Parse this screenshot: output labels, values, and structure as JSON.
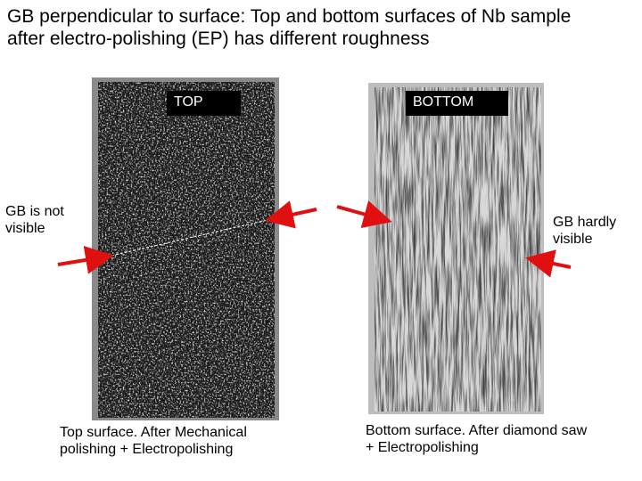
{
  "title": "GB perpendicular to surface: Top and bottom surfaces of Nb sample after electro-polishing (EP) has different roughness",
  "panels": [
    {
      "label": "TOP",
      "annotation": "GB is not visible",
      "caption": "Top surface. After Mechanical polishing + Electropolishing"
    },
    {
      "label": "BOTTOM",
      "annotation": "GB hardly visible",
      "caption": "Bottom surface. After diamond saw + Electropolishing"
    }
  ]
}
